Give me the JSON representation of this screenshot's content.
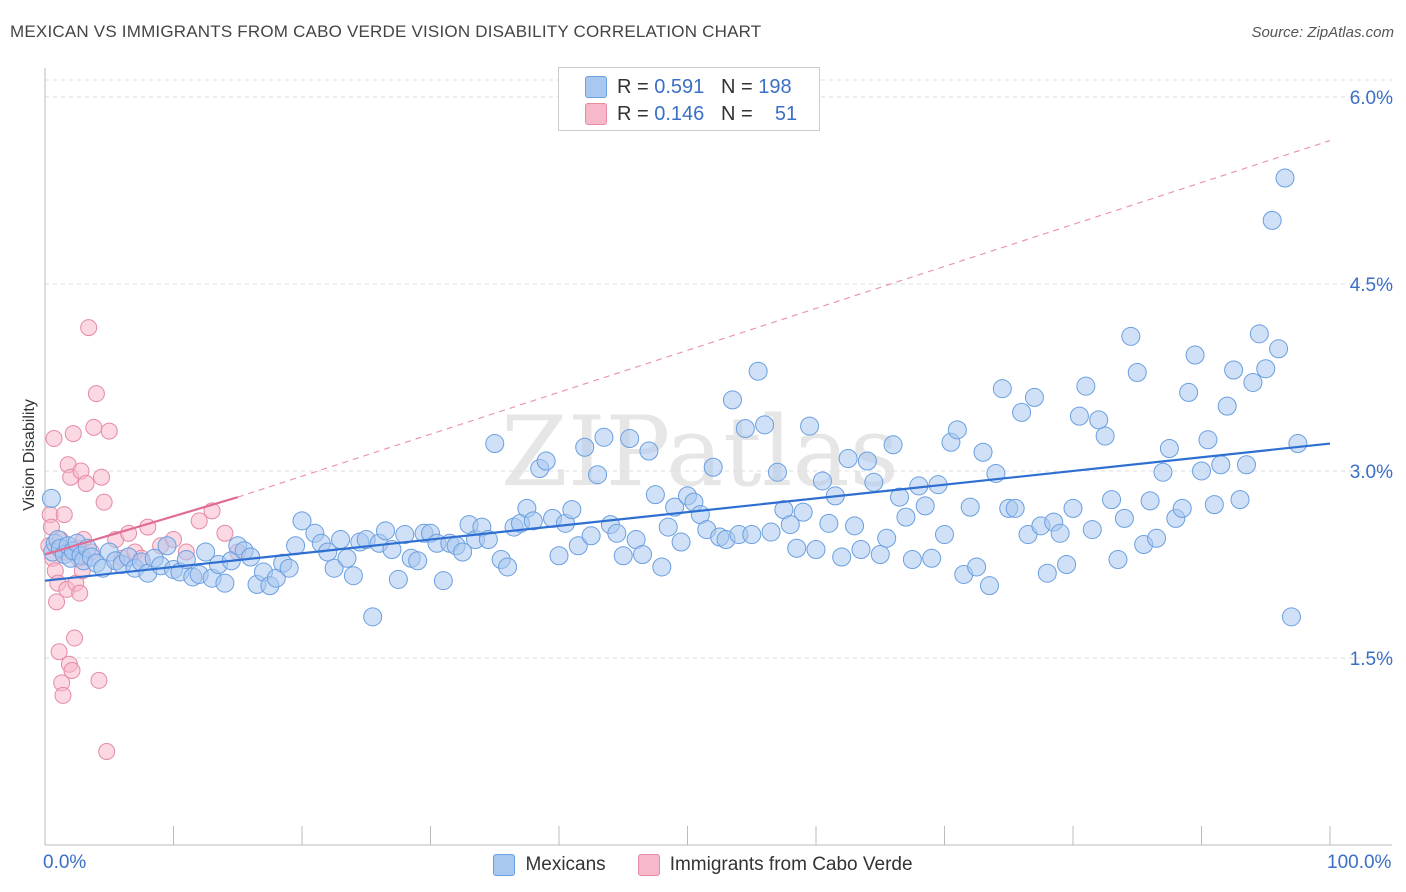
{
  "header": {
    "title": "MEXICAN VS IMMIGRANTS FROM CABO VERDE VISION DISABILITY CORRELATION CHART",
    "source": "Source: ZipAtlas.com"
  },
  "watermark": "ZIPatlas",
  "legend_top": {
    "rows": [
      {
        "r_label": "R =",
        "r_value": "0.591",
        "n_label": "N =",
        "n_value": "198",
        "color": "#a9c8f0"
      },
      {
        "r_label": "R =",
        "r_value": "0.146",
        "n_label": "N =",
        "n_value": "51",
        "color": "#f7b8ca"
      }
    ]
  },
  "chart_data": {
    "type": "scatter",
    "title": "MEXICAN VS IMMIGRANTS FROM CABO VERDE VISION DISABILITY CORRELATION CHART",
    "xlabel": "",
    "ylabel": "Vision Disability",
    "x_tick_labels": [
      "0.0%",
      "100.0%"
    ],
    "y_tick_labels": [
      "6.0%",
      "4.5%",
      "3.0%",
      "1.5%"
    ],
    "y_ticks": [
      6.0,
      4.5,
      3.0,
      1.5
    ],
    "xlim": [
      0,
      100
    ],
    "ylim": [
      0,
      6.2
    ],
    "grid": true,
    "series": [
      {
        "name": "Mexicans",
        "color": "#6a9fe0",
        "fill": "#a9c8f0",
        "trend": {
          "x": [
            0,
            100
          ],
          "y": [
            2.12,
            3.22
          ],
          "style": "solid",
          "color": "#2e6fd1"
        },
        "points": [
          [
            0.5,
            2.78
          ],
          [
            0.6,
            2.35
          ],
          [
            0.8,
            2.42
          ],
          [
            1.0,
            2.45
          ],
          [
            1.2,
            2.38
          ],
          [
            1.5,
            2.33
          ],
          [
            1.8,
            2.4
          ],
          [
            2.0,
            2.3
          ],
          [
            2.2,
            2.36
          ],
          [
            2.5,
            2.42
          ],
          [
            2.8,
            2.32
          ],
          [
            3.0,
            2.28
          ],
          [
            3.3,
            2.38
          ],
          [
            3.6,
            2.31
          ],
          [
            4.0,
            2.26
          ],
          [
            4.5,
            2.22
          ],
          [
            5.0,
            2.35
          ],
          [
            5.5,
            2.28
          ],
          [
            6.0,
            2.25
          ],
          [
            6.5,
            2.31
          ],
          [
            7.0,
            2.22
          ],
          [
            7.5,
            2.27
          ],
          [
            8.0,
            2.18
          ],
          [
            8.5,
            2.3
          ],
          [
            9.0,
            2.24
          ],
          [
            9.5,
            2.4
          ],
          [
            10.0,
            2.21
          ],
          [
            10.5,
            2.19
          ],
          [
            11.0,
            2.29
          ],
          [
            11.5,
            2.15
          ],
          [
            12.0,
            2.17
          ],
          [
            12.5,
            2.35
          ],
          [
            13.0,
            2.14
          ],
          [
            13.5,
            2.25
          ],
          [
            14.0,
            2.1
          ],
          [
            14.5,
            2.28
          ],
          [
            15.0,
            2.4
          ],
          [
            15.5,
            2.36
          ],
          [
            16.0,
            2.31
          ],
          [
            16.5,
            2.09
          ],
          [
            17.0,
            2.19
          ],
          [
            17.5,
            2.08
          ],
          [
            18.0,
            2.14
          ],
          [
            18.5,
            2.26
          ],
          [
            19.0,
            2.22
          ],
          [
            19.5,
            2.4
          ],
          [
            20.0,
            2.6
          ],
          [
            21.0,
            2.5
          ],
          [
            21.5,
            2.42
          ],
          [
            22.0,
            2.35
          ],
          [
            22.5,
            2.22
          ],
          [
            23.0,
            2.45
          ],
          [
            23.5,
            2.3
          ],
          [
            24.0,
            2.16
          ],
          [
            24.5,
            2.43
          ],
          [
            25.0,
            2.45
          ],
          [
            25.5,
            1.83
          ],
          [
            26.0,
            2.42
          ],
          [
            26.5,
            2.52
          ],
          [
            27.0,
            2.37
          ],
          [
            27.5,
            2.13
          ],
          [
            28.0,
            2.49
          ],
          [
            28.5,
            2.3
          ],
          [
            29.0,
            2.28
          ],
          [
            29.5,
            2.5
          ],
          [
            30.0,
            2.5
          ],
          [
            30.5,
            2.42
          ],
          [
            31.0,
            2.12
          ],
          [
            31.5,
            2.42
          ],
          [
            32.0,
            2.4
          ],
          [
            32.5,
            2.35
          ],
          [
            33.0,
            2.57
          ],
          [
            33.5,
            2.45
          ],
          [
            34.0,
            2.55
          ],
          [
            34.5,
            2.45
          ],
          [
            35.0,
            3.22
          ],
          [
            35.5,
            2.29
          ],
          [
            36.0,
            2.23
          ],
          [
            36.5,
            2.55
          ],
          [
            37.0,
            2.58
          ],
          [
            37.5,
            2.7
          ],
          [
            38.0,
            2.6
          ],
          [
            38.5,
            3.02
          ],
          [
            39.0,
            3.08
          ],
          [
            39.5,
            2.62
          ],
          [
            40.0,
            2.32
          ],
          [
            40.5,
            2.58
          ],
          [
            41.0,
            2.69
          ],
          [
            41.5,
            2.4
          ],
          [
            42.0,
            3.19
          ],
          [
            42.5,
            2.48
          ],
          [
            43.0,
            2.97
          ],
          [
            43.5,
            3.27
          ],
          [
            44.0,
            2.57
          ],
          [
            44.5,
            2.5
          ],
          [
            45.0,
            2.32
          ],
          [
            45.5,
            3.26
          ],
          [
            46.0,
            2.45
          ],
          [
            46.5,
            2.33
          ],
          [
            47.0,
            3.16
          ],
          [
            47.5,
            2.81
          ],
          [
            48.0,
            2.23
          ],
          [
            48.5,
            2.55
          ],
          [
            49.0,
            2.71
          ],
          [
            49.5,
            2.43
          ],
          [
            50.0,
            2.8
          ],
          [
            50.5,
            2.75
          ],
          [
            51.0,
            2.65
          ],
          [
            51.5,
            2.53
          ],
          [
            52.0,
            3.03
          ],
          [
            52.5,
            2.47
          ],
          [
            53.0,
            2.45
          ],
          [
            53.5,
            3.57
          ],
          [
            54.0,
            2.49
          ],
          [
            54.5,
            3.34
          ],
          [
            55.0,
            2.49
          ],
          [
            55.5,
            3.8
          ],
          [
            56.0,
            3.37
          ],
          [
            56.5,
            2.51
          ],
          [
            57.0,
            2.99
          ],
          [
            57.5,
            2.69
          ],
          [
            58.0,
            2.57
          ],
          [
            58.5,
            2.38
          ],
          [
            59.0,
            2.67
          ],
          [
            59.5,
            3.36
          ],
          [
            60.0,
            2.37
          ],
          [
            60.5,
            2.92
          ],
          [
            61.0,
            2.58
          ],
          [
            61.5,
            2.8
          ],
          [
            62.0,
            2.31
          ],
          [
            62.5,
            3.1
          ],
          [
            63.0,
            2.56
          ],
          [
            63.5,
            2.37
          ],
          [
            64.0,
            3.08
          ],
          [
            64.5,
            2.91
          ],
          [
            65.0,
            2.33
          ],
          [
            65.5,
            2.46
          ],
          [
            66.0,
            3.21
          ],
          [
            66.5,
            2.79
          ],
          [
            67.0,
            2.63
          ],
          [
            67.5,
            2.29
          ],
          [
            68.0,
            2.88
          ],
          [
            68.5,
            2.72
          ],
          [
            69.0,
            2.3
          ],
          [
            69.5,
            2.89
          ],
          [
            70.0,
            2.49
          ],
          [
            70.5,
            3.23
          ],
          [
            71.0,
            3.33
          ],
          [
            71.5,
            2.17
          ],
          [
            72.0,
            2.71
          ],
          [
            72.5,
            2.23
          ],
          [
            73.0,
            3.15
          ],
          [
            73.5,
            2.08
          ],
          [
            74.0,
            2.98
          ],
          [
            74.5,
            3.66
          ],
          [
            75.0,
            2.7
          ],
          [
            75.5,
            2.7
          ],
          [
            76.0,
            3.47
          ],
          [
            76.5,
            2.49
          ],
          [
            77.0,
            3.59
          ],
          [
            77.5,
            2.56
          ],
          [
            78.0,
            2.18
          ],
          [
            78.5,
            2.59
          ],
          [
            79.0,
            2.5
          ],
          [
            79.5,
            2.25
          ],
          [
            80.0,
            2.7
          ],
          [
            80.5,
            3.44
          ],
          [
            81.0,
            3.68
          ],
          [
            81.5,
            2.53
          ],
          [
            82.0,
            3.41
          ],
          [
            82.5,
            3.28
          ],
          [
            83.0,
            2.77
          ],
          [
            83.5,
            2.29
          ],
          [
            84.0,
            2.62
          ],
          [
            84.5,
            4.08
          ],
          [
            85.0,
            3.79
          ],
          [
            85.5,
            2.41
          ],
          [
            86.0,
            2.76
          ],
          [
            86.5,
            2.46
          ],
          [
            87.0,
            2.99
          ],
          [
            87.5,
            3.18
          ],
          [
            88.0,
            2.62
          ],
          [
            88.5,
            2.7
          ],
          [
            89.0,
            3.63
          ],
          [
            89.5,
            3.93
          ],
          [
            90.0,
            3.0
          ],
          [
            90.5,
            3.25
          ],
          [
            91.0,
            2.73
          ],
          [
            91.5,
            3.05
          ],
          [
            92.0,
            3.52
          ],
          [
            92.5,
            3.81
          ],
          [
            93.0,
            2.77
          ],
          [
            93.5,
            3.05
          ],
          [
            94.0,
            3.71
          ],
          [
            94.5,
            4.1
          ],
          [
            95.0,
            3.82
          ],
          [
            95.5,
            5.01
          ],
          [
            96.0,
            3.98
          ],
          [
            96.5,
            5.35
          ],
          [
            97.0,
            1.83
          ],
          [
            97.5,
            3.22
          ]
        ]
      },
      {
        "name": "Immigrants from Cabo Verde",
        "color": "#e58aa7",
        "fill": "#f7b8ca",
        "trend": {
          "x": [
            0,
            15
          ],
          "y": [
            2.33,
            2.79
          ],
          "style": "solid",
          "color": "#e06b93",
          "extension": {
            "x": [
              15,
              100
            ],
            "y": [
              2.79,
              5.65
            ],
            "style": "dashed"
          }
        },
        "points": [
          [
            0.3,
            2.4
          ],
          [
            0.4,
            2.65
          ],
          [
            0.5,
            2.55
          ],
          [
            0.6,
            2.3
          ],
          [
            0.7,
            3.26
          ],
          [
            0.8,
            2.2
          ],
          [
            0.9,
            1.95
          ],
          [
            1.0,
            2.1
          ],
          [
            1.1,
            1.55
          ],
          [
            1.2,
            2.45
          ],
          [
            1.3,
            1.3
          ],
          [
            1.4,
            1.2
          ],
          [
            1.5,
            2.65
          ],
          [
            1.6,
            2.35
          ],
          [
            1.7,
            2.05
          ],
          [
            1.8,
            3.05
          ],
          [
            1.9,
            1.45
          ],
          [
            2.0,
            2.95
          ],
          [
            2.1,
            1.4
          ],
          [
            2.2,
            3.3
          ],
          [
            2.3,
            1.66
          ],
          [
            2.4,
            2.1
          ],
          [
            2.5,
            2.38
          ],
          [
            2.6,
            2.3
          ],
          [
            2.7,
            2.02
          ],
          [
            2.8,
            3.0
          ],
          [
            2.9,
            2.2
          ],
          [
            3.0,
            2.45
          ],
          [
            3.2,
            2.9
          ],
          [
            3.4,
            4.15
          ],
          [
            3.6,
            2.35
          ],
          [
            3.8,
            3.35
          ],
          [
            4.0,
            3.62
          ],
          [
            4.2,
            1.32
          ],
          [
            4.4,
            2.95
          ],
          [
            4.6,
            2.75
          ],
          [
            4.8,
            0.75
          ],
          [
            5.0,
            3.32
          ],
          [
            5.5,
            2.45
          ],
          [
            6.0,
            2.3
          ],
          [
            6.5,
            2.5
          ],
          [
            7.0,
            2.35
          ],
          [
            7.5,
            2.3
          ],
          [
            8.0,
            2.55
          ],
          [
            9.0,
            2.4
          ],
          [
            10.0,
            2.45
          ],
          [
            11.0,
            2.35
          ],
          [
            12.0,
            2.6
          ],
          [
            13.0,
            2.68
          ],
          [
            14.0,
            2.5
          ],
          [
            15.0,
            2.35
          ]
        ]
      }
    ]
  },
  "bottom_legend": [
    {
      "label": "Mexicans",
      "color": "#a9c8f0"
    },
    {
      "label": "Immigrants from Cabo Verde",
      "color": "#f7b8ca"
    }
  ]
}
